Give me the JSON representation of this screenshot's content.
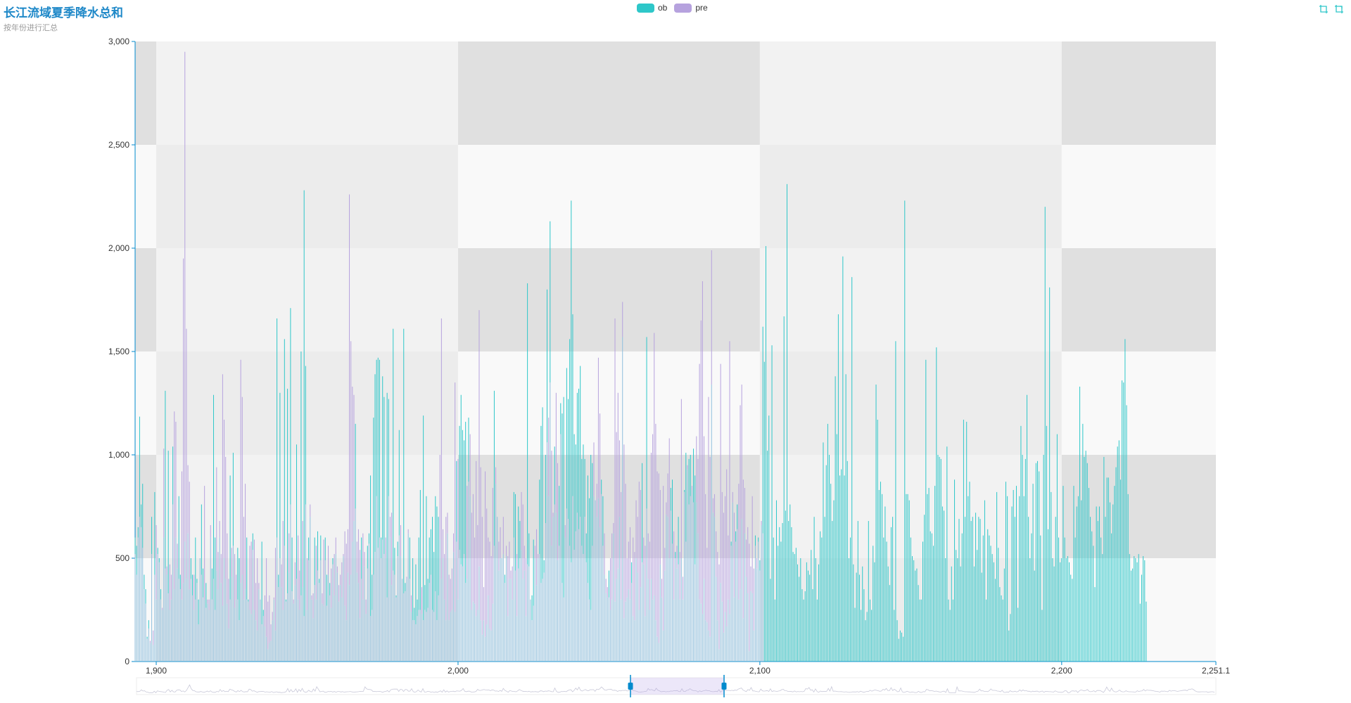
{
  "title": "长江流域夏季降水总和",
  "subtitle": "按年份进行汇总",
  "legend": [
    {
      "name": "ob",
      "color": "#2ec7c9"
    },
    {
      "name": "pre",
      "color": "#b6a2de"
    }
  ],
  "toolbox": [
    {
      "icon": "zoom-select-icon"
    },
    {
      "icon": "zoom-reset-icon"
    }
  ],
  "colors": {
    "axis": "#008acd",
    "ob": "#2ec7c9",
    "pre": "#b6a2de",
    "overlap": "#8fbfdd"
  },
  "chart_data": {
    "type": "bar",
    "xlim": [
      1893,
      2251.1
    ],
    "ylim": [
      0,
      3000
    ],
    "x_ticks": [
      "1,900",
      "2,000",
      "2,100",
      "2,200",
      "2,251.1"
    ],
    "x_tick_values": [
      1900,
      2000,
      2100,
      2200,
      2251.1
    ],
    "y_ticks": [
      "0",
      "500",
      "1,000",
      "1,500",
      "2,000",
      "2,500",
      "3,000"
    ],
    "y_tick_values": [
      0,
      500,
      1000,
      1500,
      2000,
      2500,
      3000
    ],
    "x_start": 1893,
    "x_step": 0.5,
    "series": [
      {
        "name": "ob",
        "values": [
          600,
          560,
          650,
          1185,
          760,
          860,
          420,
          350,
          120,
          200,
          90,
          700,
          80,
          820,
          300,
          550,
          500,
          350,
          250,
          600,
          1310,
          420,
          1020,
          250,
          300,
          1040,
          350,
          600,
          450,
          800,
          420,
          300,
          380,
          580,
          400,
          620,
          350,
          500,
          420,
          250,
          600,
          400,
          300,
          500,
          760,
          450,
          300,
          380,
          280,
          250,
          600,
          450,
          1290,
          600,
          440,
          350,
          600,
          380,
          270,
          500,
          400,
          280,
          160,
          900,
          410,
          1010,
          260,
          300,
          550,
          500,
          380,
          420,
          300,
          350,
          600,
          300,
          250,
          230,
          620,
          250,
          200,
          150,
          350,
          300,
          580,
          250,
          170,
          120,
          60,
          90,
          100,
          200,
          300,
          150,
          1660,
          420,
          1300,
          360,
          250,
          1560,
          300,
          1320,
          430,
          1710,
          600,
          280,
          370,
          1050,
          300,
          250,
          1500,
          360,
          2280,
          1430,
          250,
          600,
          700,
          300,
          210,
          600,
          300,
          630,
          400,
          610,
          280,
          270,
          600,
          420,
          420,
          380,
          260,
          500,
          320,
          520,
          430,
          290,
          370,
          310,
          510,
          270,
          200,
          430,
          370,
          420,
          580,
          680,
          1150,
          430,
          380,
          210,
          600,
          300,
          460,
          230,
          560,
          620,
          900,
          420,
          1180,
          1390,
          1460,
          1470,
          1460,
          600,
          1380,
          1280,
          500,
          1300,
          1270,
          600,
          370,
          1610,
          550,
          320,
          580,
          1120,
          510,
          400,
          1610,
          380,
          400,
          620,
          600,
          240,
          500,
          260,
          470,
          300,
          600,
          830,
          230,
          1190,
          370,
          800,
          400,
          600,
          640,
          700,
          530,
          800,
          750,
          700,
          590,
          400,
          500,
          300,
          200,
          620,
          200,
          240,
          250,
          530,
          240,
          970,
          300,
          1140,
          1290,
          1120,
          1070,
          1160,
          400,
          1180,
          800,
          250,
          290,
          280,
          220,
          250,
          460,
          200,
          130,
          200,
          120,
          180,
          320,
          160,
          150,
          280,
          1310,
          860,
          700,
          440,
          500,
          500,
          520,
          420,
          510,
          220,
          400,
          400,
          300,
          820,
          810,
          220,
          750,
          680,
          540,
          400,
          440,
          220,
          1830,
          620,
          300,
          320,
          590,
          500,
          370,
          500,
          880,
          1140,
          1230,
          490,
          1000,
          1800,
          800,
          2130,
          560,
          700,
          1040,
          720,
          490,
          850,
          1250,
          1200,
          1280,
          600,
          1420,
          1270,
          1560,
          2230,
          1680,
          1100,
          1050,
          1300,
          1320,
          1430,
          980,
          1050,
          980,
          620,
          900,
          790,
          1000,
          960,
          800,
          780,
          700,
          790,
          650,
          880,
          800,
          420,
          330,
          310,
          440,
          250,
          300,
          620,
          290,
          400,
          450,
          700,
          300,
          1570,
          210,
          290,
          310,
          350,
          300,
          480,
          220,
          200,
          500,
          430,
          250,
          360,
          960,
          470,
          220,
          1570,
          400,
          250,
          400,
          300,
          320,
          200,
          120,
          90,
          470,
          310,
          150,
          440,
          710,
          700,
          500,
          840,
          880,
          300,
          530,
          450,
          700,
          300,
          500,
          300,
          830,
          1010,
          930,
          980,
          1000,
          830,
          1030,
          900,
          770,
          620,
          300,
          280,
          230,
          400,
          200,
          190,
          150,
          120,
          1340,
          720,
          700,
          410,
          200,
          60,
          380,
          290,
          140,
          240,
          170,
          300,
          230,
          580,
          770,
          310,
          630,
          760,
          300,
          350,
          690,
          210,
          620,
          410,
          330,
          50,
          340,
          330,
          150,
          610,
          450,
          600,
          490,
          660,
          1620,
          1450,
          2010,
          1020,
          1190,
          400,
          1530,
          600,
          300,
          780,
          560,
          650,
          580,
          670,
          1670,
          730,
          2310,
          680,
          760,
          650,
          530,
          520,
          550,
          470,
          410,
          500,
          350,
          300,
          340,
          480,
          440,
          420,
          540,
          350,
          700,
          500,
          300,
          470,
          630,
          600,
          1060,
          700,
          950,
          1150,
          1000,
          860,
          680,
          780,
          1380,
          1100,
          1680,
          900,
          930,
          1960,
          900,
          1390,
          970,
          500,
          600,
          1860,
          470,
          260,
          430,
          680,
          420,
          250,
          460,
          350,
          200,
          240,
          680,
          300,
          250,
          560,
          480,
          1340,
          1170,
          830,
          870,
          810,
          600,
          750,
          580,
          460,
          370,
          650,
          700,
          250,
          1550,
          200,
          110,
          150,
          140,
          120,
          2230,
          810,
          810,
          780,
          600,
          510,
          490,
          440,
          450,
          370,
          300,
          300,
          580,
          710,
          1460,
          810,
          840,
          630,
          620,
          560,
          850,
          1520,
          1000,
          990,
          980,
          750,
          730,
          500,
          1040,
          300,
          250,
          460,
          300,
          880,
          540,
          500,
          690,
          460,
          620,
          1170,
          700,
          1160,
          800,
          870,
          680,
          700,
          460,
          720,
          540,
          700,
          690,
          430,
          610,
          780,
          300,
          640,
          610,
          560,
          520,
          480,
          400,
          820,
          550,
          360,
          320,
          300,
          450,
          870,
          800,
          150,
          230,
          750,
          830,
          700,
          850,
          260,
          800,
          1140,
          1000,
          800,
          980,
          1290,
          700,
          500,
          620,
          860,
          440,
          960,
          970,
          920,
          610,
          250,
          1000,
          2200,
          1140,
          640,
          1810,
          820,
          500,
          460,
          700,
          1100,
          600,
          480,
          500,
          850,
          600,
          500,
          510,
          480,
          420,
          400,
          850,
          600,
          750,
          800,
          1330,
          780,
          1150,
          990,
          1020,
          960,
          840,
          700,
          630,
          560,
          360,
          750,
          680,
          750,
          600,
          520,
          990,
          700,
          890,
          890,
          770,
          620,
          760,
          850,
          940,
          1040,
          1070,
          880,
          1360,
          1350,
          1560,
          1240,
          810,
          520,
          440,
          450,
          510,
          500,
          480,
          520,
          280,
          420,
          510,
          490,
          290
        ]
      },
      {
        "name": "pre",
        "values": [
          520,
          420,
          600,
          700,
          650,
          550,
          350,
          280,
          110,
          160,
          100,
          520,
          150,
          420,
          660,
          520,
          480,
          300,
          260,
          1030,
          450,
          460,
          330,
          470,
          420,
          760,
          1210,
          1160,
          570,
          400,
          350,
          920,
          1950,
          2950,
          1610,
          950,
          870,
          400,
          320,
          420,
          300,
          380,
          180,
          500,
          420,
          310,
          850,
          260,
          300,
          300,
          660,
          300,
          400,
          250,
          940,
          530,
          680,
          520,
          1390,
          1170,
          990,
          620,
          400,
          300,
          550,
          560,
          520,
          420,
          300,
          200,
          1460,
          1280,
          700,
          860,
          300,
          290,
          560,
          580,
          540,
          590,
          380,
          500,
          380,
          300,
          180,
          220,
          320,
          500,
          290,
          320,
          180,
          240,
          310,
          550,
          600,
          360,
          500,
          470,
          680,
          560,
          290,
          330,
          620,
          760,
          340,
          300,
          480,
          400,
          610,
          440,
          320,
          680,
          220,
          760,
          500,
          490,
          760,
          320,
          330,
          370,
          560,
          440,
          380,
          490,
          330,
          590,
          490,
          270,
          560,
          320,
          450,
          470,
          520,
          600,
          460,
          370,
          420,
          480,
          520,
          630,
          570,
          640,
          2260,
          1550,
          1330,
          1290,
          740,
          580,
          640,
          540,
          400,
          620,
          530,
          300,
          450,
          570,
          220,
          250,
          420,
          530,
          800,
          550,
          600,
          500,
          590,
          520,
          600,
          310,
          800,
          700,
          720,
          440,
          420,
          310,
          510,
          610,
          660,
          400,
          330,
          340,
          410,
          640,
          400,
          320,
          200,
          200,
          180,
          220,
          250,
          250,
          360,
          200,
          250,
          240,
          260,
          380,
          420,
          250,
          240,
          340,
          200,
          320,
          1000,
          1660,
          640,
          520,
          700,
          720,
          420,
          400,
          450,
          620,
          1350,
          580,
          980,
          540,
          470,
          460,
          520,
          380,
          850,
          870,
          1100,
          720,
          810,
          600,
          970,
          660,
          1700,
          940,
          700,
          360,
          920,
          740,
          600,
          580,
          510,
          840,
          560,
          940,
          700,
          580,
          650,
          500,
          700,
          380,
          560,
          510,
          580,
          440,
          460,
          600,
          440,
          520,
          450,
          500,
          820,
          760,
          560,
          500,
          470,
          460,
          300,
          200,
          270,
          560,
          640,
          520,
          520,
          380,
          400,
          430,
          670,
          1060,
          1180,
          1350,
          1020,
          720,
          760,
          1300,
          960,
          560,
          1100,
          380,
          310,
          660,
          740,
          690,
          560,
          480,
          800,
          540,
          630,
          720,
          640,
          700,
          560,
          520,
          700,
          480,
          380,
          300,
          250,
          560,
          1060,
          780,
          860,
          1470,
          1200,
          810,
          560,
          620,
          400,
          360,
          310,
          500,
          620,
          670,
          1660,
          1110,
          1300,
          1070,
          820,
          1740,
          1050,
          860,
          500,
          580,
          650,
          380,
          600,
          530,
          780,
          700,
          870,
          830,
          480,
          600,
          560,
          740,
          620,
          580,
          1010,
          1100,
          1590,
          1150,
          920,
          910,
          830,
          400,
          850,
          550,
          770,
          910,
          1080,
          730,
          570,
          630,
          500,
          560,
          470,
          530,
          1270,
          410,
          820,
          580,
          950,
          760,
          800,
          850,
          770,
          470,
          1090,
          980,
          1440,
          1650,
          1840,
          1090,
          810,
          550,
          1280,
          990,
          1990,
          790,
          810,
          630,
          530,
          470,
          1440,
          820,
          720,
          800,
          930,
          610,
          1550,
          560,
          820,
          720,
          580,
          640,
          860,
          1240,
          1340,
          880,
          840,
          590,
          650,
          570,
          460,
          800,
          450,
          560,
          500,
          580,
          440,
          680,
          620
        ]
      }
    ]
  }
}
